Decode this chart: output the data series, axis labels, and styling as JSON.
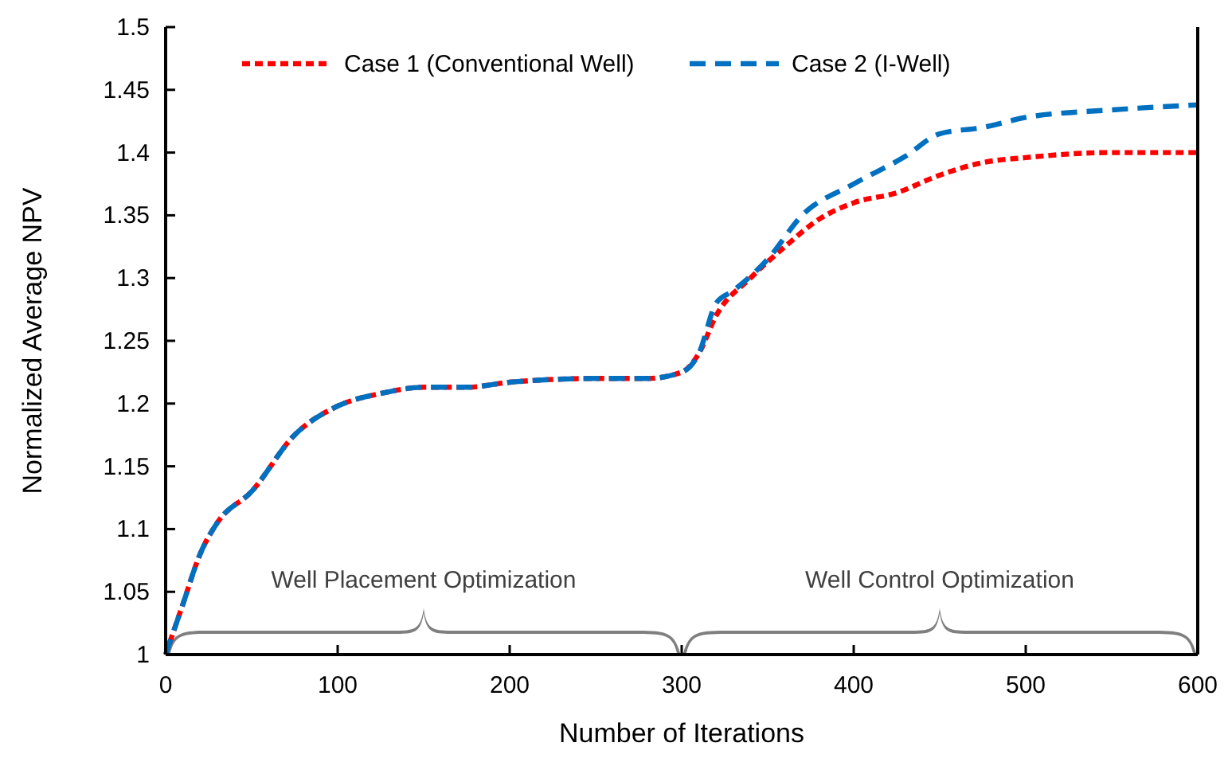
{
  "chart_data": {
    "type": "line",
    "xlabel": "Number of Iterations",
    "ylabel": "Normalized Average NPV",
    "xlim": [
      0,
      600
    ],
    "xticks": [
      0,
      100,
      200,
      300,
      400,
      500,
      600
    ],
    "ylim": [
      1,
      1.5
    ],
    "yticks": [
      1,
      1.05,
      1.1,
      1.15,
      1.2,
      1.25,
      1.3,
      1.35,
      1.4,
      1.45,
      1.5
    ],
    "grid": false,
    "legend": "top",
    "marker": "none",
    "annotations": [
      "Well Placement Optimization",
      "Well Control Optimization"
    ],
    "series": [
      {
        "name": "Case 1 (Conventional Well)",
        "color": "#ff0000",
        "line_style": "dotted",
        "x": [
          0,
          10,
          20,
          30,
          50,
          75,
          100,
          125,
          150,
          175,
          200,
          250,
          280,
          300,
          310,
          320,
          340,
          360,
          380,
          400,
          425,
          450,
          475,
          500,
          550,
          600
        ],
        "values": [
          1,
          1.04,
          1.08,
          1.105,
          1.13,
          1.175,
          1.198,
          1.208,
          1.213,
          1.213,
          1.217,
          1.22,
          1.22,
          1.225,
          1.24,
          1.27,
          1.3,
          1.325,
          1.347,
          1.36,
          1.368,
          1.382,
          1.392,
          1.396,
          1.4,
          1.4
        ]
      },
      {
        "name": "Case 2 (I-Well)",
        "color": "#0070c0",
        "line_style": "dashed",
        "x": [
          0,
          10,
          20,
          30,
          50,
          75,
          100,
          125,
          150,
          175,
          200,
          250,
          280,
          300,
          310,
          320,
          330,
          350,
          370,
          400,
          430,
          450,
          475,
          500,
          550,
          600
        ],
        "values": [
          1,
          1.04,
          1.08,
          1.105,
          1.13,
          1.175,
          1.198,
          1.208,
          1.213,
          1.213,
          1.217,
          1.22,
          1.22,
          1.225,
          1.24,
          1.28,
          1.29,
          1.315,
          1.35,
          1.375,
          1.397,
          1.415,
          1.42,
          1.428,
          1.434,
          1.438
        ]
      }
    ]
  }
}
